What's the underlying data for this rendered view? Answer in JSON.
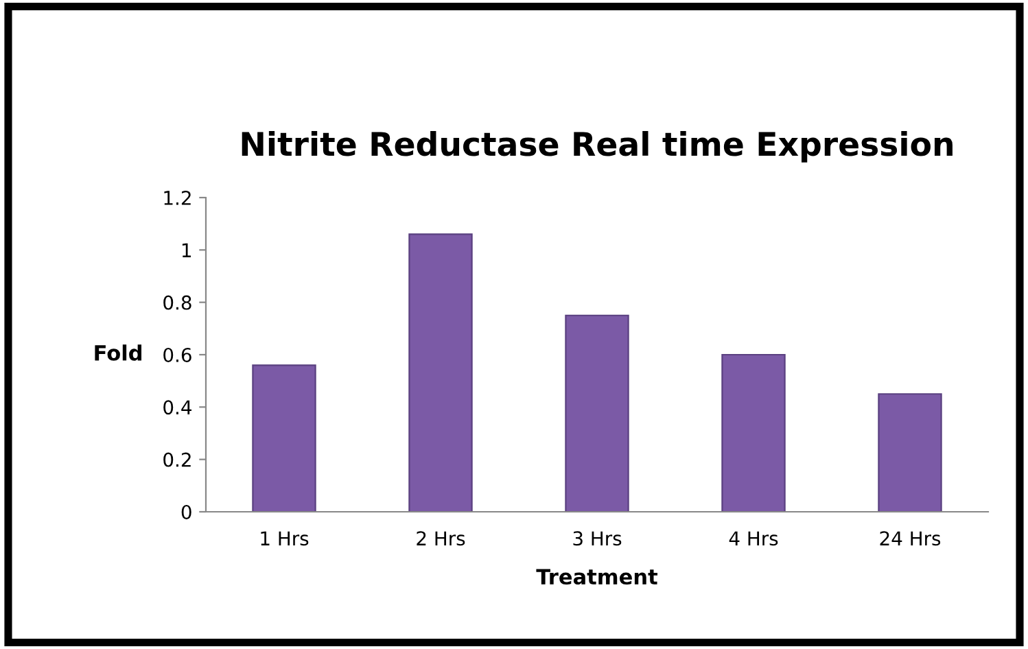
{
  "chart_data": {
    "type": "bar",
    "title": "Nitrite Reductase Real time Expression",
    "xlabel": "Treatment",
    "ylabel": "Fold",
    "categories": [
      "1 Hrs",
      "2 Hrs",
      "3 Hrs",
      "4 Hrs",
      "24 Hrs"
    ],
    "values": [
      0.56,
      1.06,
      0.75,
      0.6,
      0.45
    ],
    "color": "#7b5aa6",
    "ylim": [
      0,
      1.2
    ],
    "yticks": [
      0,
      {
        "value": 0.2,
        "label": "0.2"
      },
      {
        "value": 0.4,
        "label": "0.4"
      },
      {
        "value": 0.6,
        "label": "0.6"
      },
      {
        "value": 0.8,
        "label": "0.8"
      },
      1,
      {
        "value": 1.2,
        "label": "1.2"
      }
    ],
    "grid": false
  }
}
